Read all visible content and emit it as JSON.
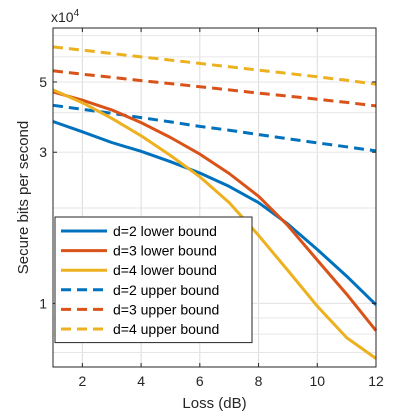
{
  "chart_data": {
    "type": "line",
    "xlabel": "Loss (dB)",
    "ylabel": "Secure bits per second",
    "y_exponent_label": "x10",
    "y_exponent_power": "4",
    "y_scale": "log",
    "xlim": [
      1,
      12
    ],
    "ylim": [
      0.63,
      7.4
    ],
    "x_ticks": [
      2,
      4,
      6,
      8,
      10,
      12
    ],
    "y_ticks": [
      1,
      3,
      5
    ],
    "grid": true,
    "legend_position": "bottom-left",
    "x": [
      1,
      2,
      3,
      4,
      5,
      6,
      7,
      8,
      9,
      10,
      11,
      12
    ],
    "series": [
      {
        "name": "d=2 lower bound",
        "style": "solid",
        "color": "#0072BD",
        "values": [
          3.75,
          3.48,
          3.22,
          3.02,
          2.8,
          2.58,
          2.34,
          2.08,
          1.78,
          1.48,
          1.22,
          0.99
        ]
      },
      {
        "name": "d=3 lower bound",
        "style": "solid",
        "color": "#D95319",
        "values": [
          4.65,
          4.38,
          4.08,
          3.72,
          3.34,
          2.96,
          2.57,
          2.18,
          1.76,
          1.37,
          1.07,
          0.82
        ]
      },
      {
        "name": "d=4 lower bound",
        "style": "solid",
        "color": "#EDB120",
        "values": [
          4.72,
          4.3,
          3.84,
          3.38,
          2.93,
          2.51,
          2.08,
          1.64,
          1.27,
          0.98,
          0.78,
          0.67
        ]
      },
      {
        "name": "d=2 upper bound",
        "style": "dashed",
        "color": "#0072BD",
        "values": [
          4.22,
          4.1,
          3.98,
          3.86,
          3.74,
          3.62,
          3.52,
          3.41,
          3.31,
          3.21,
          3.12,
          3.03
        ]
      },
      {
        "name": "d=3 upper bound",
        "style": "dashed",
        "color": "#D95319",
        "values": [
          5.42,
          5.29,
          5.17,
          5.05,
          4.94,
          4.83,
          4.72,
          4.61,
          4.51,
          4.41,
          4.31,
          4.2
        ]
      },
      {
        "name": "d=4 upper bound",
        "style": "dashed",
        "color": "#EDB120",
        "values": [
          6.45,
          6.3,
          6.15,
          6.0,
          5.86,
          5.72,
          5.58,
          5.45,
          5.32,
          5.19,
          5.06,
          4.92
        ]
      }
    ]
  }
}
